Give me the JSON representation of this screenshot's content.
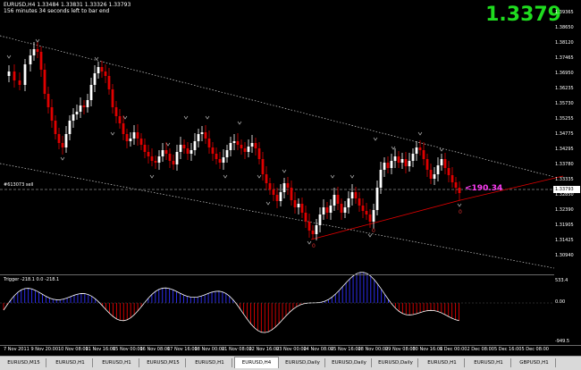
{
  "header": {
    "symbol_line": "EURUSD,H4  1.33484 1.33831 1.33326 1.33793",
    "timer_line": "156 minutes 34 seconds left to bar end",
    "big_price": "1.3379"
  },
  "price_axis": {
    "labels": [
      "1.39365",
      "1.38650",
      "1.38120",
      "1.37465",
      "1.36950",
      "1.36235",
      "1.35730",
      "1.35255",
      "1.34775",
      "1.34295",
      "1.33780",
      "1.33335",
      "1.32850",
      "1.32390",
      "1.31905",
      "1.31425",
      "1.30940"
    ],
    "current": "1.33793"
  },
  "chart": {
    "hline_label": "#613073 sell",
    "fibo_label": "<190.34",
    "wave_labels": [
      "0",
      "0",
      "0"
    ]
  },
  "indicator": {
    "label": "Trigger  -218.1  0.0  -218.1",
    "levels": [
      "533.4",
      "0.00",
      "-949.5"
    ]
  },
  "time_axis": {
    "labels": [
      "7 Nov 2011",
      "9 Nov 20:00",
      "10 Nov 08:00",
      "11 Nov 16:00",
      "15 Nov 00:00",
      "16 Nov 08:00",
      "17 Nov 16:00",
      "18 Nov 00:00",
      "21 Nov 08:00",
      "22 Nov 16:00",
      "23 Nov 00:00",
      "24 Nov 08:00",
      "25 Nov 16:00",
      "28 Nov 00:00",
      "29 Nov 08:00",
      "30 Nov 16:00",
      "1 Dec 00:00",
      "2 Dec 08:00",
      "5 Dec 16:00",
      "5 Dec 08:00"
    ]
  },
  "tabs": {
    "items": [
      "EURUSD,M15",
      "EURUSD,H1",
      "EURUSD,H1",
      "EURUSD,M15",
      "EURUSD,H1",
      "EURUSD,H4",
      "EURUSD,Daily",
      "EURUSD,Daily",
      "EURUSD,Daily",
      "EURUSD,H1",
      "EURUSD,H1",
      "GBPUSD,H1"
    ],
    "active_index": 5
  },
  "colors": {
    "bull": "#ffffff",
    "bear": "#e00000",
    "price_big": "#1fdc1f",
    "fibo": "#ff3cf5",
    "indicator_line": "#ffffff",
    "hist_pos": "#3030ff",
    "hist_neg": "#e00000"
  }
}
